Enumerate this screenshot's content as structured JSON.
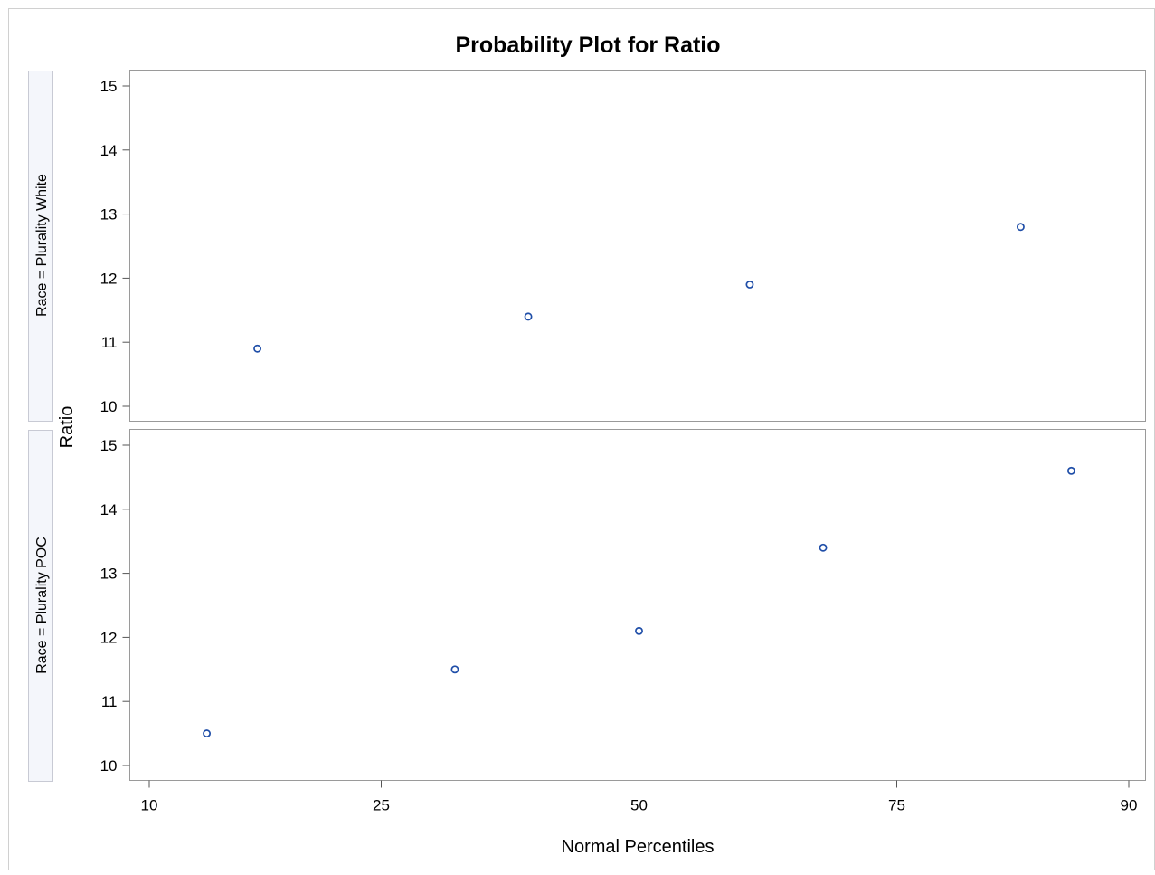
{
  "chart_data": {
    "type": "scatter",
    "title": "Probability Plot for Ratio",
    "xlabel": "Normal Percentiles",
    "ylabel": "Ratio",
    "x_scale": "normal-probability",
    "x_ticks": [
      10,
      25,
      50,
      75,
      90
    ],
    "y_ticks": [
      10,
      11,
      12,
      13,
      14,
      15
    ],
    "ylim": [
      10,
      15
    ],
    "grid": false,
    "legend": "none",
    "marker": "open-circle",
    "marker_color": "#1f4ea8",
    "panels": [
      {
        "label": "Race = Plurality White",
        "points": [
          {
            "x": 15.9,
            "y": 10.9
          },
          {
            "x": 38.6,
            "y": 11.4
          },
          {
            "x": 61.4,
            "y": 11.9
          },
          {
            "x": 84.1,
            "y": 12.8
          }
        ]
      },
      {
        "label": "Race = Plurality POC",
        "points": [
          {
            "x": 12.9,
            "y": 10.5
          },
          {
            "x": 31.5,
            "y": 11.5
          },
          {
            "x": 50.0,
            "y": 12.1
          },
          {
            "x": 68.5,
            "y": 13.4
          },
          {
            "x": 87.1,
            "y": 14.6
          }
        ]
      }
    ]
  }
}
